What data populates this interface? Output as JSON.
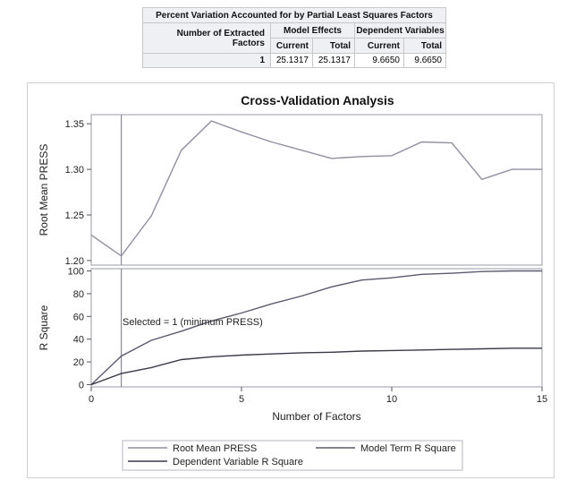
{
  "table": {
    "title": "Percent Variation Accounted for by Partial Least Squares Factors",
    "row_header": "Number of Extracted Factors",
    "group_headers": [
      "Model Effects",
      "Dependent Variables"
    ],
    "sub_headers": [
      "Current",
      "Total",
      "Current",
      "Total"
    ],
    "rows": [
      {
        "factors": "1",
        "values": [
          "25.1317",
          "25.1317",
          "9.6650",
          "9.6650"
        ]
      }
    ]
  },
  "chart_data": [
    {
      "type": "line",
      "title": "Cross-Validation Analysis",
      "ylabel": "Root Mean PRESS",
      "xlabel": "",
      "ylim": [
        1.195,
        1.36
      ],
      "yticks": [
        "1.20",
        "1.25",
        "1.30",
        "1.35"
      ],
      "x": [
        0,
        1,
        2,
        3,
        4,
        5,
        6,
        7,
        8,
        9,
        10,
        11,
        12,
        13,
        14,
        15
      ],
      "series": [
        {
          "name": "Root Mean PRESS",
          "color": "#9090a0",
          "values": [
            1.228,
            1.205,
            1.249,
            1.321,
            1.353,
            1.341,
            1.33,
            1.321,
            1.312,
            1.314,
            1.315,
            1.33,
            1.329,
            1.289,
            1.3,
            1.3
          ]
        }
      ],
      "reference_line_x": 1
    },
    {
      "type": "line",
      "ylabel": "R Square",
      "xlabel": "Number of Factors",
      "ylim": [
        -2,
        102
      ],
      "xlim": [
        0,
        15
      ],
      "yticks": [
        "0",
        "20",
        "40",
        "60",
        "80",
        "100"
      ],
      "xticks": [
        "0",
        "5",
        "10",
        "15"
      ],
      "x": [
        0,
        1,
        2,
        3,
        4,
        5,
        6,
        7,
        8,
        9,
        10,
        11,
        12,
        13,
        14,
        15
      ],
      "series": [
        {
          "name": "Model Term R Square",
          "color": "#5a5a6e",
          "values": [
            0,
            25.1,
            39,
            47,
            56,
            63,
            71,
            78,
            86,
            92,
            94,
            97,
            98,
            99.5,
            100,
            100
          ]
        },
        {
          "name": "Dependent Variable R Square",
          "color": "#3a3a48",
          "values": [
            0,
            9.7,
            15,
            22,
            24.5,
            26,
            27,
            28,
            28.5,
            29.5,
            30,
            30.5,
            31,
            31.5,
            32,
            32
          ]
        }
      ],
      "reference_line_x": 1,
      "annotation": "Selected = 1 (minimum PRESS)"
    }
  ],
  "legend": {
    "placement": "bottom",
    "entries": [
      "Root Mean PRESS",
      "Model Term R Square",
      "Dependent Variable R Square"
    ]
  }
}
